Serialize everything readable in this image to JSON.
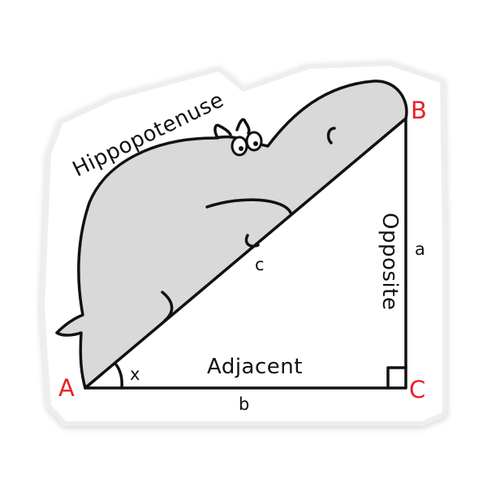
{
  "title": "Hippopotenuse",
  "vertices": {
    "a": "A",
    "b": "B",
    "c": "C"
  },
  "sides": {
    "hypotenuse": "c",
    "opposite": "a",
    "adjacent": "b"
  },
  "labels": {
    "adjacent": "Adjacent",
    "opposite": "Opposite",
    "angle": "x"
  },
  "colors": {
    "vertex": "#e8202a",
    "hippo": "#d9d9d9",
    "ink": "#111111",
    "sticker_outline": "#eeeeee"
  }
}
